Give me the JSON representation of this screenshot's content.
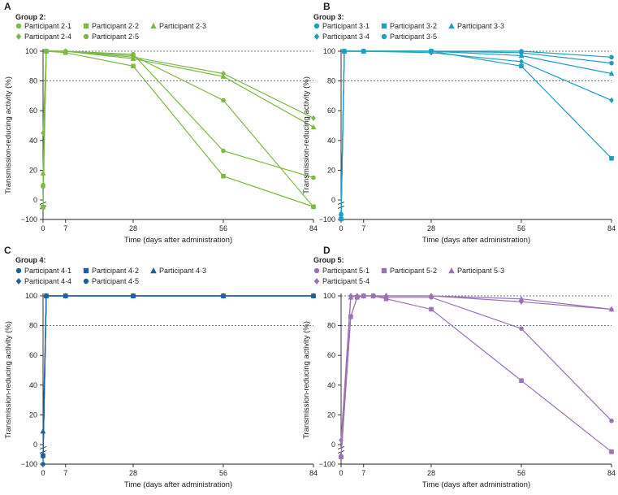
{
  "figure": {
    "shared_xlabel": "Time (days after administration)",
    "shared_ylabel": "Transmission-reducing activity (%)"
  },
  "chart_data": [
    {
      "panel": "A",
      "type": "line",
      "group_label": "Group 2:",
      "color": "#7cb844",
      "xlabel": "Time (days after administration)",
      "ylabel": "Transmission-reducing activity (%)",
      "xlim": [
        0,
        84
      ],
      "xticks": [
        "0",
        "7",
        "28",
        "56",
        "84"
      ],
      "yticks": [
        "−100",
        "0",
        "20",
        "40",
        "60",
        "80",
        "100"
      ],
      "reference_lines": [
        100,
        80
      ],
      "series": [
        {
          "name": "Participant 2·1",
          "marker": "circle",
          "points": [
            [
              0,
              10
            ],
            [
              1,
              100
            ],
            [
              7,
              100
            ],
            [
              28,
              97
            ],
            [
              56,
              67
            ],
            [
              84,
              -4
            ]
          ]
        },
        {
          "name": "Participant 2·2",
          "marker": "square",
          "points": [
            [
              0,
              -5
            ],
            [
              1,
              100
            ],
            [
              7,
              99
            ],
            [
              28,
              90
            ],
            [
              56,
              16
            ],
            [
              84,
              -2
            ]
          ]
        },
        {
          "name": "Participant 2·3",
          "marker": "triangle",
          "points": [
            [
              0,
              18
            ],
            [
              1,
              100
            ],
            [
              7,
              100
            ],
            [
              28,
              95
            ],
            [
              56,
              83
            ],
            [
              84,
              49
            ]
          ]
        },
        {
          "name": "Participant 2·4",
          "marker": "diamond",
          "points": [
            [
              0,
              45
            ],
            [
              1,
              100
            ],
            [
              7,
              100
            ],
            [
              28,
              96
            ],
            [
              56,
              85
            ],
            [
              84,
              55
            ]
          ]
        },
        {
          "name": "Participant 2·5",
          "marker": "circle",
          "points": [
            [
              0,
              9
            ],
            [
              1,
              100
            ],
            [
              7,
              100
            ],
            [
              28,
              98
            ],
            [
              56,
              33
            ],
            [
              84,
              15
            ]
          ]
        }
      ]
    },
    {
      "panel": "B",
      "type": "line",
      "group_label": "Group 3:",
      "color": "#1e9ec2",
      "xlabel": "Time (days after administration)",
      "ylabel": "Transmission-reducing activity (%)",
      "xlim": [
        0,
        84
      ],
      "xticks": [
        "0",
        "7",
        "28",
        "56",
        "84"
      ],
      "yticks": [
        "−100",
        "0",
        "20",
        "40",
        "60",
        "80",
        "100"
      ],
      "reference_lines": [
        100,
        80
      ],
      "series": [
        {
          "name": "Participant 3·1",
          "marker": "circle",
          "points": [
            [
              0,
              -60
            ],
            [
              1,
              100
            ],
            [
              7,
              100
            ],
            [
              28,
              100
            ],
            [
              56,
              100
            ],
            [
              84,
              96
            ]
          ]
        },
        {
          "name": "Participant 3·2",
          "marker": "square",
          "points": [
            [
              0,
              -97
            ],
            [
              1,
              100
            ],
            [
              7,
              100
            ],
            [
              28,
              100
            ],
            [
              56,
              90
            ],
            [
              84,
              28
            ]
          ]
        },
        {
          "name": "Participant 3·3",
          "marker": "triangle",
          "points": [
            [
              0,
              -90
            ],
            [
              1,
              100
            ],
            [
              7,
              100
            ],
            [
              28,
              100
            ],
            [
              56,
              97
            ],
            [
              84,
              85
            ]
          ]
        },
        {
          "name": "Participant 3·4",
          "marker": "diamond",
          "points": [
            [
              0,
              -55
            ],
            [
              1,
              100
            ],
            [
              7,
              100
            ],
            [
              28,
              99
            ],
            [
              56,
              93
            ],
            [
              84,
              67
            ]
          ]
        },
        {
          "name": "Participant 3·5",
          "marker": "circle",
          "points": [
            [
              0,
              -65
            ],
            [
              1,
              100
            ],
            [
              7,
              100
            ],
            [
              28,
              100
            ],
            [
              56,
              99
            ],
            [
              84,
              92
            ]
          ]
        }
      ]
    },
    {
      "panel": "C",
      "type": "line",
      "group_label": "Group 4:",
      "color": "#1f5e9f",
      "xlabel": "Time (days after administration)",
      "ylabel": "Transmission-reducing activity (%)",
      "xlim": [
        0,
        84
      ],
      "xticks": [
        "0",
        "7",
        "28",
        "56",
        "84"
      ],
      "yticks": [
        "−100",
        "0",
        "20",
        "40",
        "60",
        "80",
        "100"
      ],
      "reference_lines": [
        100,
        80
      ],
      "series": [
        {
          "name": "Participant 4·1",
          "marker": "circle",
          "points": [
            [
              0,
              -40
            ],
            [
              1,
              100
            ],
            [
              7,
              100
            ],
            [
              28,
              100
            ],
            [
              56,
              100
            ],
            [
              84,
              100
            ]
          ]
        },
        {
          "name": "Participant 4·2",
          "marker": "square",
          "points": [
            [
              0,
              -35
            ],
            [
              1,
              100
            ],
            [
              7,
              100
            ],
            [
              28,
              100
            ],
            [
              56,
              100
            ],
            [
              84,
              100
            ]
          ]
        },
        {
          "name": "Participant 4·3",
          "marker": "triangle",
          "points": [
            [
              0,
              9
            ],
            [
              1,
              100
            ],
            [
              7,
              100
            ],
            [
              28,
              100
            ],
            [
              56,
              100
            ],
            [
              84,
              100
            ]
          ]
        },
        {
          "name": "Participant 4·4",
          "marker": "diamond",
          "points": [
            [
              0,
              -30
            ],
            [
              1,
              100
            ],
            [
              7,
              100
            ],
            [
              28,
              100
            ],
            [
              56,
              100
            ],
            [
              84,
              100
            ]
          ]
        },
        {
          "name": "Participant 4·5",
          "marker": "circle",
          "points": [
            [
              0,
              -100
            ],
            [
              1,
              100
            ],
            [
              7,
              100
            ],
            [
              28,
              100
            ],
            [
              56,
              100
            ],
            [
              84,
              100
            ]
          ]
        }
      ]
    },
    {
      "panel": "D",
      "type": "line",
      "group_label": "Group 5:",
      "color": "#9b72b5",
      "xlabel": "Time (days after administration)",
      "ylabel": "Transmission-reducing activity (%)",
      "xlim": [
        0,
        84
      ],
      "xticks": [
        "0",
        "7",
        "28",
        "56",
        "84"
      ],
      "yticks": [
        "−100",
        "0",
        "20",
        "40",
        "60",
        "80",
        "100"
      ],
      "reference_lines": [
        100,
        80
      ],
      "series": [
        {
          "name": "Participant 5·1",
          "marker": "circle",
          "points": [
            [
              0,
              -40
            ],
            [
              3,
              86
            ],
            [
              5,
              99
            ],
            [
              7,
              100
            ],
            [
              10,
              100
            ],
            [
              14,
              99
            ],
            [
              28,
              99
            ],
            [
              56,
              78
            ],
            [
              84,
              16
            ]
          ]
        },
        {
          "name": "Participant 5·2",
          "marker": "square",
          "points": [
            [
              0,
              -45
            ],
            [
              3,
              86
            ],
            [
              5,
              99
            ],
            [
              7,
              100
            ],
            [
              10,
              100
            ],
            [
              14,
              98
            ],
            [
              28,
              91
            ],
            [
              56,
              43
            ],
            [
              84,
              -5
            ]
          ]
        },
        {
          "name": "Participant 5·3",
          "marker": "triangle",
          "points": [
            [
              0,
              -30
            ],
            [
              3,
              99
            ],
            [
              5,
              100
            ],
            [
              7,
              100
            ],
            [
              10,
              100
            ],
            [
              14,
              100
            ],
            [
              28,
              100
            ],
            [
              56,
              98
            ],
            [
              84,
              91
            ]
          ]
        },
        {
          "name": "Participant 5·4",
          "marker": "diamond",
          "points": [
            [
              0,
              3
            ],
            [
              3,
              100
            ],
            [
              5,
              100
            ],
            [
              7,
              100
            ],
            [
              10,
              100
            ],
            [
              14,
              100
            ],
            [
              28,
              100
            ],
            [
              56,
              96
            ],
            [
              84,
              91
            ]
          ]
        }
      ]
    }
  ]
}
